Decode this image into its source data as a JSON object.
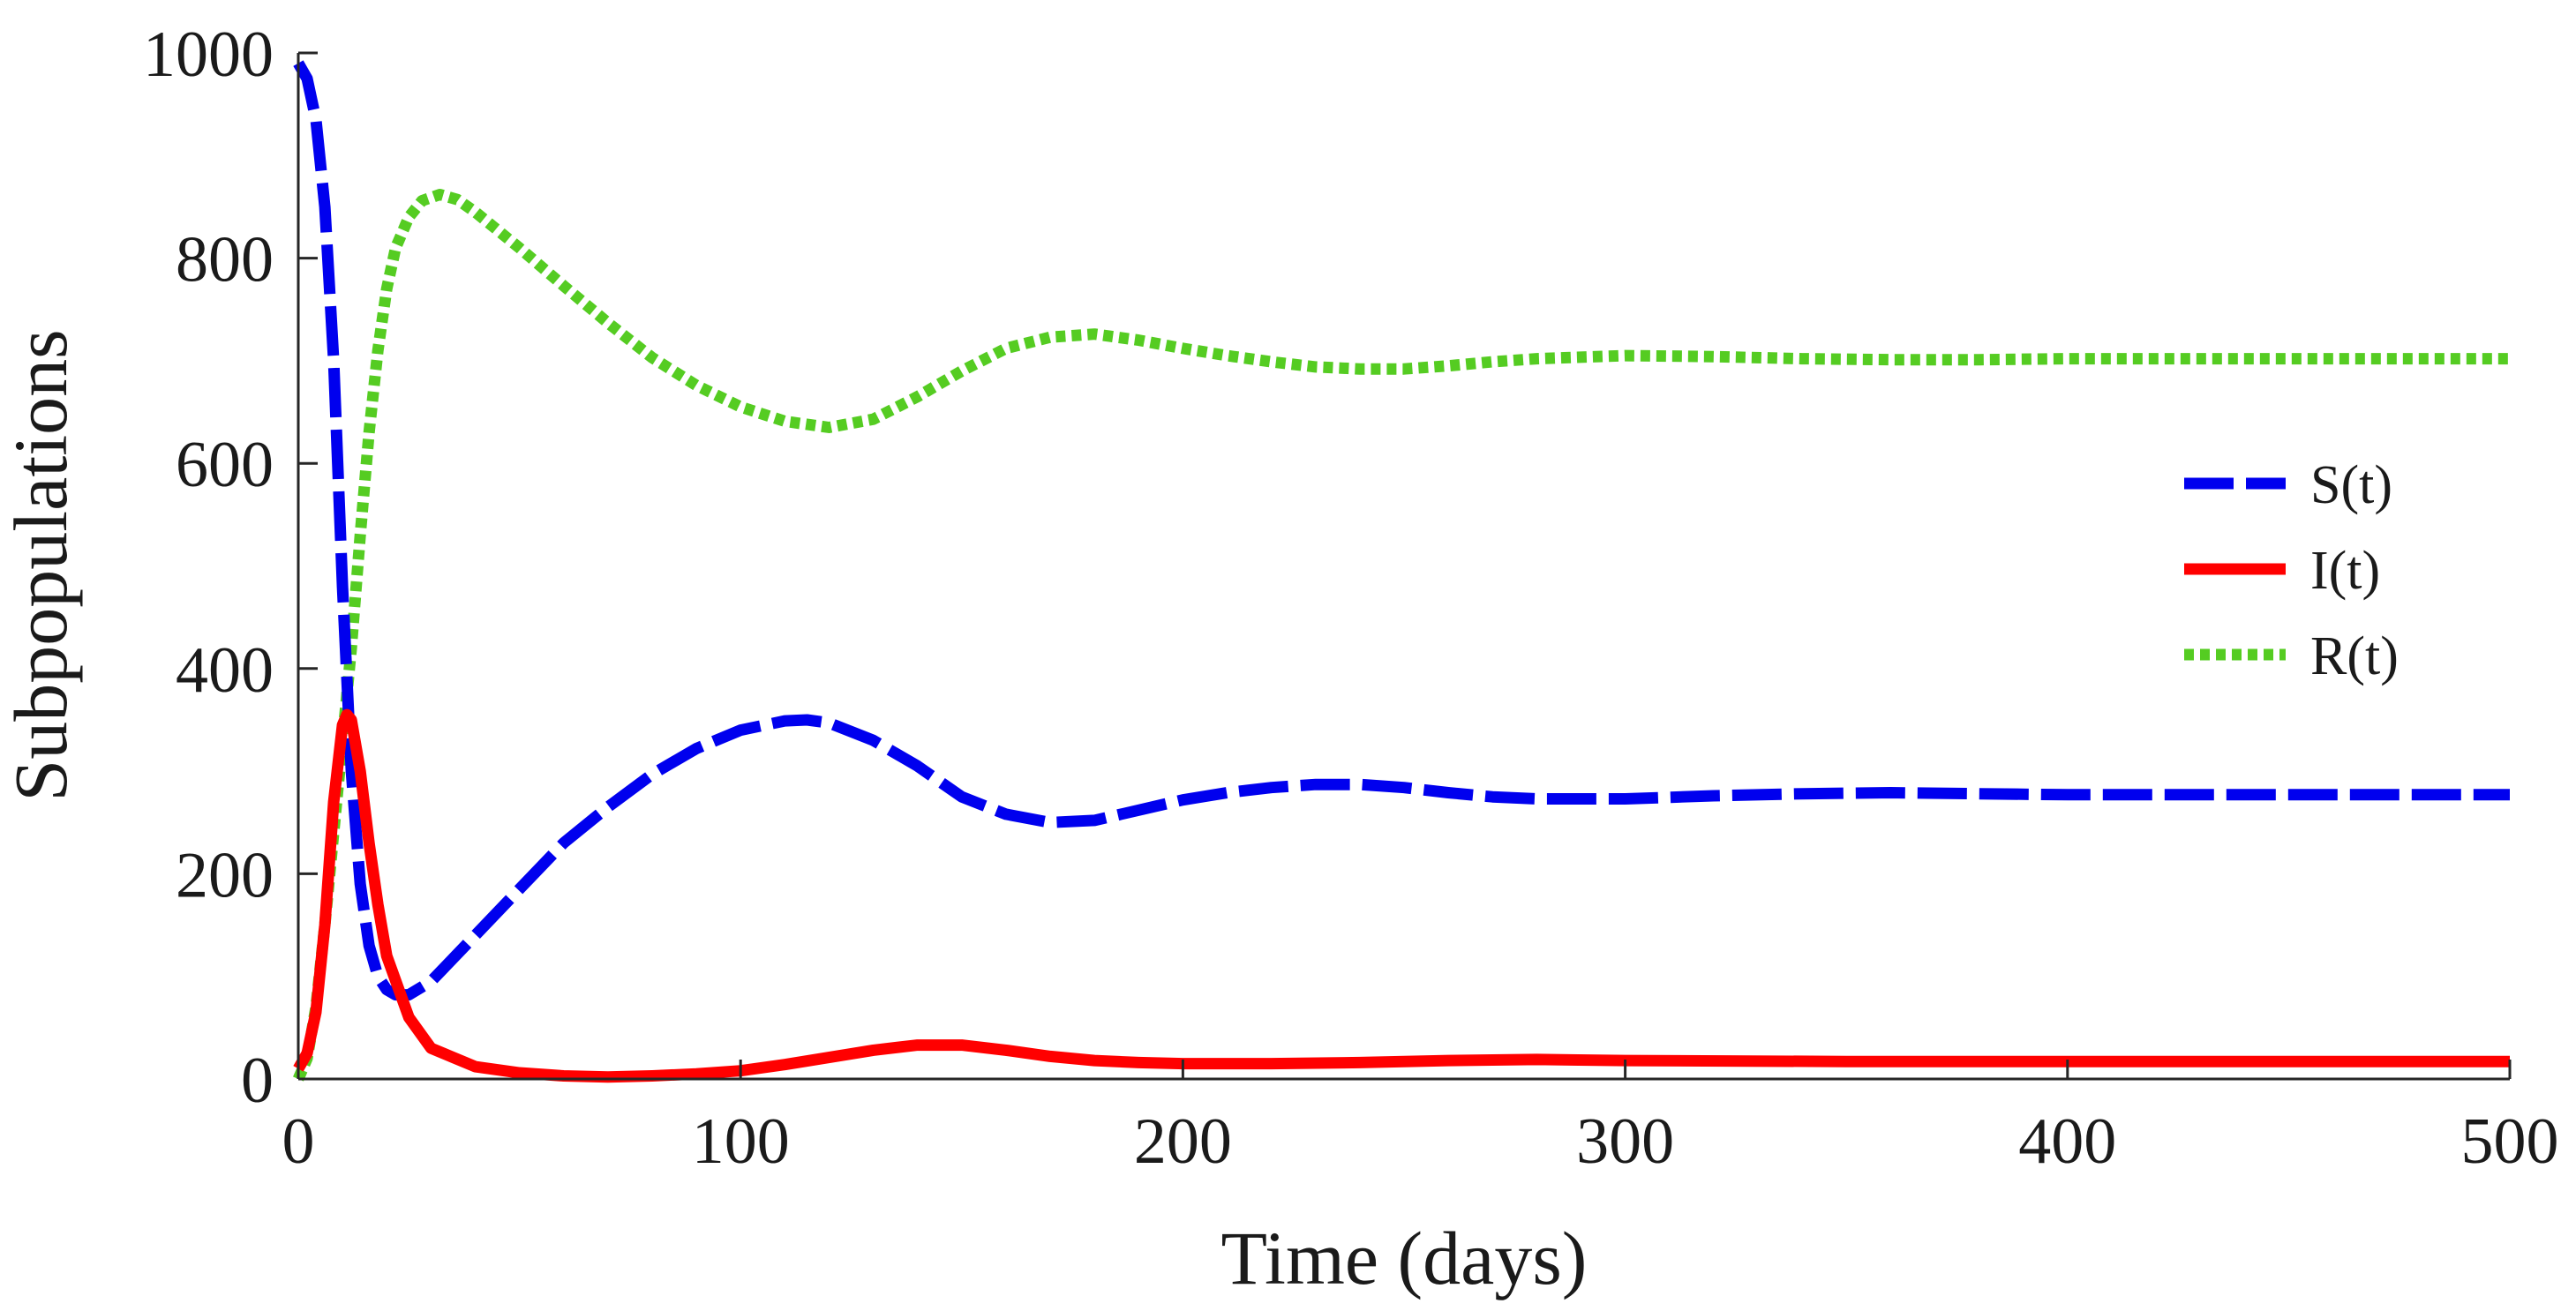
{
  "chart_data": {
    "type": "line",
    "title": "",
    "xlabel": "Time (days)",
    "ylabel": "Subpopulations",
    "xlim": [
      0,
      500
    ],
    "ylim": [
      0,
      1000
    ],
    "xticks": [
      0,
      100,
      200,
      300,
      400,
      500
    ],
    "yticks": [
      0,
      200,
      400,
      600,
      800,
      1000
    ],
    "xtick_labels": [
      "0",
      "100",
      "200",
      "300",
      "400",
      "500"
    ],
    "ytick_labels": [
      "0",
      "200",
      "400",
      "600",
      "800",
      "1000"
    ],
    "grid": false,
    "legend": {
      "position": "right-center",
      "entries": [
        "S(t)",
        "I(t)",
        "R(t)"
      ]
    },
    "series": [
      {
        "name": "S(t)",
        "color": "#0000ee",
        "style": "dashed",
        "points": [
          [
            0,
            990
          ],
          [
            2,
            975
          ],
          [
            4,
            935
          ],
          [
            6,
            850
          ],
          [
            8,
            700
          ],
          [
            10,
            480
          ],
          [
            12,
            300
          ],
          [
            14,
            190
          ],
          [
            16,
            130
          ],
          [
            18,
            100
          ],
          [
            20,
            87
          ],
          [
            22,
            82
          ],
          [
            25,
            82
          ],
          [
            30,
            95
          ],
          [
            40,
            140
          ],
          [
            50,
            185
          ],
          [
            60,
            230
          ],
          [
            70,
            265
          ],
          [
            80,
            297
          ],
          [
            90,
            322
          ],
          [
            100,
            340
          ],
          [
            110,
            349
          ],
          [
            115,
            350
          ],
          [
            120,
            347
          ],
          [
            130,
            330
          ],
          [
            140,
            305
          ],
          [
            150,
            275
          ],
          [
            160,
            258
          ],
          [
            170,
            250
          ],
          [
            180,
            252
          ],
          [
            190,
            262
          ],
          [
            200,
            272
          ],
          [
            210,
            279
          ],
          [
            220,
            284
          ],
          [
            230,
            287
          ],
          [
            240,
            287
          ],
          [
            250,
            284
          ],
          [
            260,
            279
          ],
          [
            270,
            275
          ],
          [
            280,
            273
          ],
          [
            290,
            273
          ],
          [
            300,
            273
          ],
          [
            320,
            276
          ],
          [
            340,
            278
          ],
          [
            360,
            279
          ],
          [
            380,
            278
          ],
          [
            400,
            277
          ],
          [
            450,
            277
          ],
          [
            500,
            277
          ]
        ]
      },
      {
        "name": "I(t)",
        "color": "#ff0000",
        "style": "solid",
        "points": [
          [
            0,
            10
          ],
          [
            2,
            25
          ],
          [
            4,
            65
          ],
          [
            6,
            150
          ],
          [
            8,
            270
          ],
          [
            10,
            345
          ],
          [
            11,
            355
          ],
          [
            12,
            350
          ],
          [
            14,
            300
          ],
          [
            16,
            230
          ],
          [
            18,
            170
          ],
          [
            20,
            120
          ],
          [
            25,
            60
          ],
          [
            30,
            30
          ],
          [
            40,
            12
          ],
          [
            50,
            6
          ],
          [
            60,
            3
          ],
          [
            70,
            2
          ],
          [
            80,
            3
          ],
          [
            90,
            5
          ],
          [
            100,
            8
          ],
          [
            110,
            14
          ],
          [
            120,
            21
          ],
          [
            130,
            28
          ],
          [
            140,
            33
          ],
          [
            150,
            33
          ],
          [
            160,
            28
          ],
          [
            170,
            22
          ],
          [
            180,
            18
          ],
          [
            190,
            16
          ],
          [
            200,
            15
          ],
          [
            220,
            15
          ],
          [
            240,
            16
          ],
          [
            260,
            18
          ],
          [
            280,
            19
          ],
          [
            300,
            18
          ],
          [
            350,
            17
          ],
          [
            400,
            17
          ],
          [
            450,
            17
          ],
          [
            500,
            17
          ]
        ]
      },
      {
        "name": "R(t)",
        "color": "#55cc22",
        "style": "dotted",
        "points": [
          [
            0,
            0
          ],
          [
            2,
            20
          ],
          [
            4,
            70
          ],
          [
            6,
            150
          ],
          [
            8,
            240
          ],
          [
            10,
            330
          ],
          [
            12,
            420
          ],
          [
            14,
            530
          ],
          [
            16,
            630
          ],
          [
            18,
            710
          ],
          [
            20,
            770
          ],
          [
            22,
            810
          ],
          [
            25,
            840
          ],
          [
            28,
            856
          ],
          [
            32,
            862
          ],
          [
            36,
            857
          ],
          [
            40,
            845
          ],
          [
            50,
            810
          ],
          [
            60,
            773
          ],
          [
            70,
            737
          ],
          [
            80,
            703
          ],
          [
            90,
            676
          ],
          [
            100,
            655
          ],
          [
            110,
            641
          ],
          [
            120,
            635
          ],
          [
            130,
            643
          ],
          [
            140,
            665
          ],
          [
            150,
            690
          ],
          [
            160,
            712
          ],
          [
            170,
            723
          ],
          [
            180,
            726
          ],
          [
            190,
            720
          ],
          [
            200,
            712
          ],
          [
            210,
            705
          ],
          [
            220,
            699
          ],
          [
            230,
            694
          ],
          [
            240,
            692
          ],
          [
            250,
            692
          ],
          [
            260,
            695
          ],
          [
            270,
            699
          ],
          [
            280,
            702
          ],
          [
            300,
            705
          ],
          [
            320,
            704
          ],
          [
            340,
            702
          ],
          [
            360,
            701
          ],
          [
            380,
            701
          ],
          [
            400,
            702
          ],
          [
            450,
            702
          ],
          [
            500,
            702
          ]
        ]
      }
    ]
  }
}
